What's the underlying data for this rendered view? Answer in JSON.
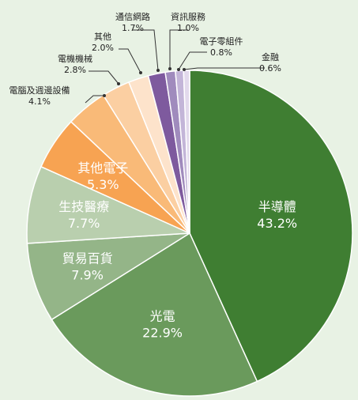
{
  "chart_data": {
    "type": "pie",
    "title": "",
    "start_angle_deg": 0,
    "direction": "clockwise",
    "slices": [
      {
        "label": "半導體",
        "value": 43.2,
        "value_label": "43.2%",
        "color": "#3f7e32",
        "label_placement": "inside"
      },
      {
        "label": "光電",
        "value": 22.9,
        "value_label": "22.9%",
        "color": "#6a9a5c",
        "label_placement": "inside"
      },
      {
        "label": "貿易百貨",
        "value": 7.9,
        "value_label": "7.9%",
        "color": "#94b588",
        "label_placement": "inside"
      },
      {
        "label": "生技醫療",
        "value": 7.7,
        "value_label": "7.7%",
        "color": "#b9cfae",
        "label_placement": "inside"
      },
      {
        "label": "其他電子",
        "value": 5.3,
        "value_label": "5.3%",
        "color": "#f7a352",
        "label_placement": "inside"
      },
      {
        "label": "電腦及週邊設備",
        "value": 4.1,
        "value_label": "4.1%",
        "color": "#f9ba78",
        "label_placement": "outside"
      },
      {
        "label": "電機機械",
        "value": 2.8,
        "value_label": "2.8%",
        "color": "#fbcfa2",
        "label_placement": "outside"
      },
      {
        "label": "其他",
        "value": 2.0,
        "value_label": "2.0%",
        "color": "#fde3cb",
        "label_placement": "outside"
      },
      {
        "label": "通信網路",
        "value": 1.7,
        "value_label": "1.7%",
        "color": "#7e5a9e",
        "label_placement": "outside"
      },
      {
        "label": "資訊服務",
        "value": 1.0,
        "value_label": "1.0%",
        "color": "#a08bbd",
        "label_placement": "outside"
      },
      {
        "label": "電子零組件",
        "value": 0.8,
        "value_label": "0.8%",
        "color": "#c3b5d8",
        "label_placement": "outside"
      },
      {
        "label": "金融",
        "value": 0.6,
        "value_label": "0.6%",
        "color": "#e2d9ec",
        "label_placement": "outside"
      }
    ],
    "legend": "none"
  }
}
